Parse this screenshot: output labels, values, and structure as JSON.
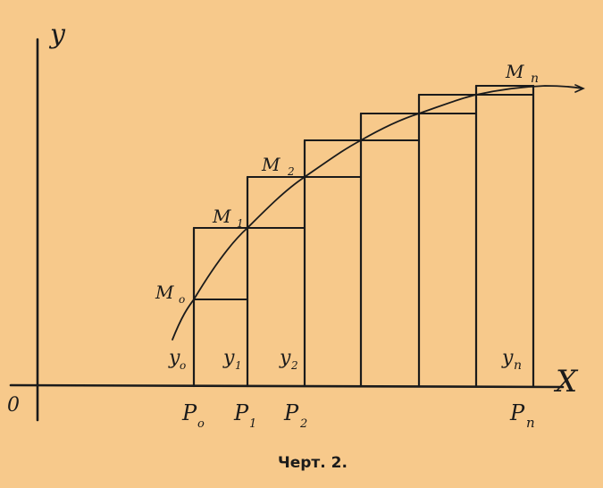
{
  "figure": {
    "axis_labels": {
      "y": "y",
      "x": "X",
      "origin": "0"
    },
    "points": [
      "M0",
      "M1",
      "M2",
      "Mn"
    ],
    "ordinates": [
      "y0",
      "y1",
      "y2",
      "yn"
    ],
    "abscissas": [
      "P0",
      "P1",
      "P2",
      "Pn"
    ],
    "caption": "Черт. 2."
  },
  "labels": {
    "y_axis": "y",
    "x_axis": "X",
    "origin": "0",
    "M0": "M",
    "M0_sub": "o",
    "M1": "M",
    "M1_sub": "1",
    "M2": "M",
    "M2_sub": "2",
    "Mn": "M",
    "Mn_sub": "n",
    "y0": "y",
    "y0_sub": "o",
    "y1": "y",
    "y1_sub": "1",
    "y2": "y",
    "y2_sub": "2",
    "yn": "y",
    "yn_sub": "n",
    "P0": "P",
    "P0_sub": "o",
    "P1": "P",
    "P1_sub": "1",
    "P2": "P",
    "P2_sub": "2",
    "Pn": "P",
    "Pn_sub": "n",
    "caption": "Черт. 2."
  }
}
